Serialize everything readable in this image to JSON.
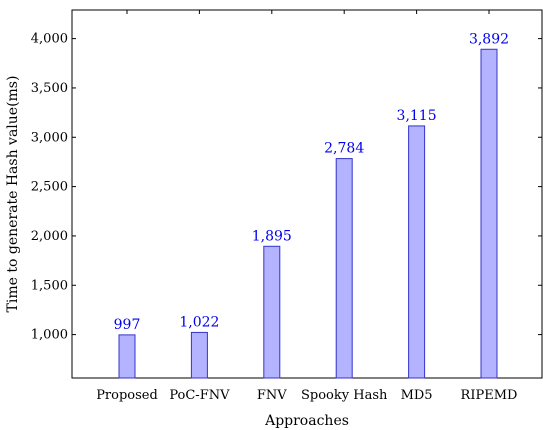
{
  "chart_data": {
    "type": "bar",
    "title": "",
    "xlabel": "Approaches",
    "ylabel": "Time to generate Hash value(ms)",
    "categories": [
      "Proposed",
      "PoC-FNV",
      "FNV",
      "Spooky Hash",
      "MD5",
      "RIPEMD"
    ],
    "values": [
      997,
      1022,
      1895,
      2784,
      3115,
      3892
    ],
    "value_labels": [
      "997",
      "1,022",
      "1,895",
      "2,784",
      "3,115",
      "3,892"
    ],
    "y_ticks": [
      1000,
      1500,
      2000,
      2500,
      3000,
      3500,
      4000
    ],
    "y_tick_labels": [
      "1,000",
      "1,500",
      "2,000",
      "2,500",
      "3,000",
      "3,500",
      "4,000"
    ],
    "ylim": [
      560,
      4290
    ],
    "grid": false,
    "colors": {
      "bar_fill": "#b3b3ff",
      "bar_stroke": "#3333cc",
      "label": "#0000ee",
      "axis": "#000000"
    }
  }
}
